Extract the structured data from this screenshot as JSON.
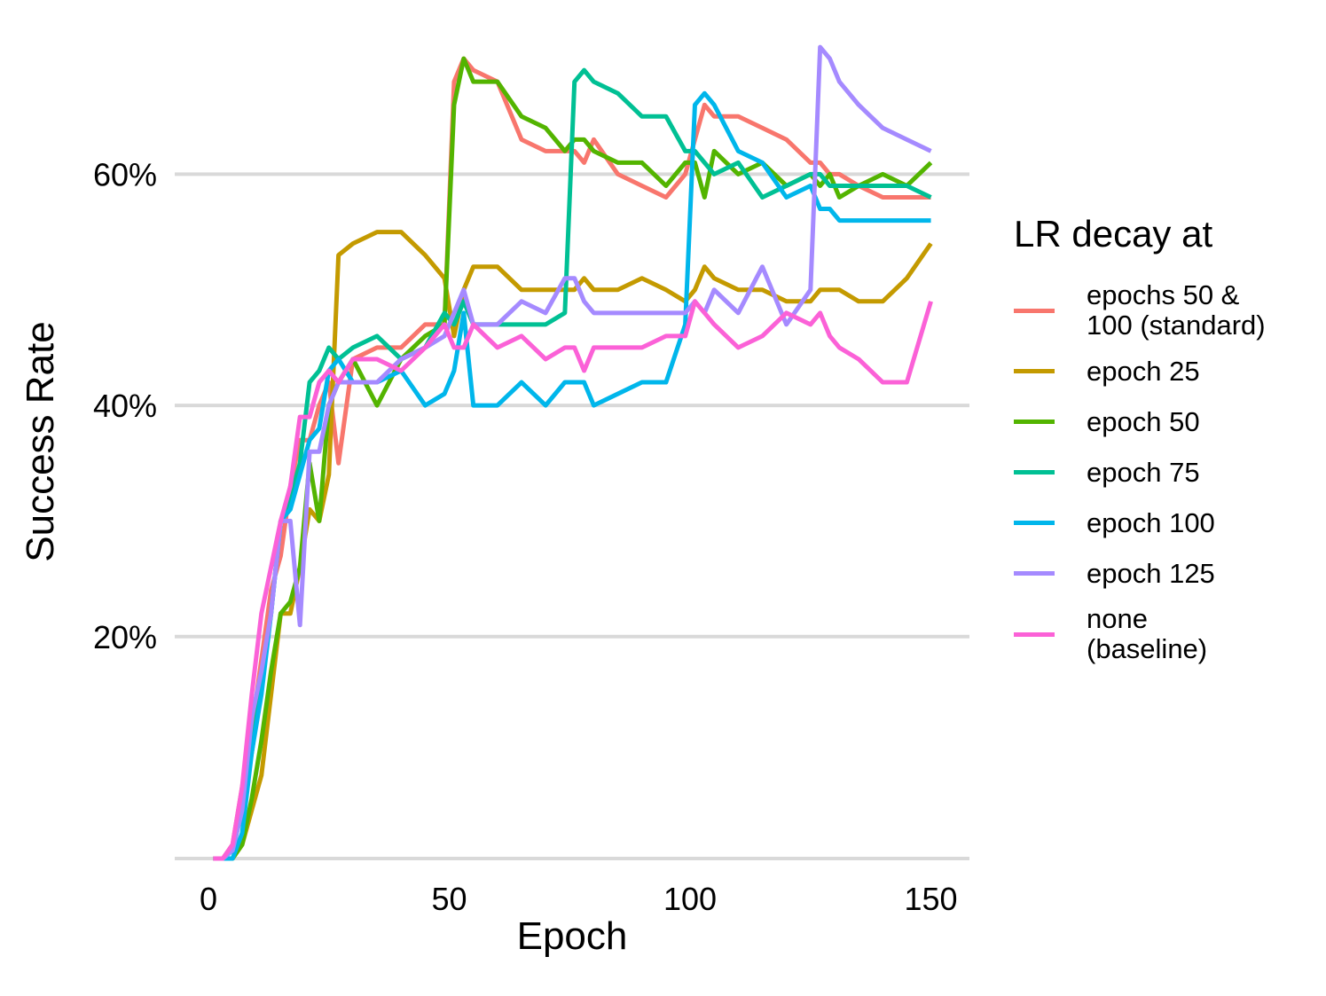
{
  "chart_data": {
    "type": "line",
    "x_label": "Epoch",
    "y_label": "Success Rate",
    "legend_title": "LR decay at",
    "xlim": [
      -7,
      158
    ],
    "xticks": [
      0,
      50,
      100,
      150
    ],
    "ylim": [
      0.8,
      73
    ],
    "yticks": [
      {
        "value": 20,
        "label": "20%"
      },
      {
        "value": 40,
        "label": "40%"
      },
      {
        "value": 60,
        "label": "60%"
      }
    ],
    "grid": true,
    "legend": "right",
    "x": [
      1,
      3,
      5,
      7,
      9,
      11,
      13,
      15,
      17,
      19,
      21,
      23,
      25,
      27,
      30,
      35,
      40,
      45,
      49,
      51,
      53,
      55,
      60,
      65,
      70,
      74,
      76,
      78,
      80,
      85,
      90,
      95,
      99,
      101,
      103,
      105,
      110,
      115,
      120,
      125,
      127,
      129,
      131,
      135,
      140,
      145,
      150
    ],
    "series": [
      {
        "name": "epochs 50 &\n100 (standard)",
        "color": "#f8766d",
        "values": [
          0.8,
          0.8,
          2,
          7,
          12,
          18,
          24,
          27,
          33,
          37,
          37,
          40,
          42,
          35,
          44,
          45,
          45,
          47,
          47,
          68,
          70,
          69,
          68,
          63,
          62,
          62,
          62,
          61,
          63,
          60,
          59,
          58,
          60,
          63,
          66,
          65,
          65,
          64,
          63,
          61,
          61,
          60,
          60,
          59,
          58,
          58,
          58
        ]
      },
      {
        "name": "epoch 25",
        "color": "#c49a00",
        "values": [
          0.8,
          0.8,
          0.8,
          2,
          5,
          8,
          15,
          22,
          22,
          26,
          31,
          30,
          34,
          53,
          54,
          55,
          55,
          53,
          51,
          46,
          50,
          52,
          52,
          50,
          50,
          50,
          50,
          51,
          50,
          50,
          51,
          50,
          49,
          50,
          52,
          51,
          50,
          50,
          49,
          49,
          50,
          50,
          50,
          49,
          49,
          51,
          54
        ]
      },
      {
        "name": "epoch 50",
        "color": "#53b400",
        "values": [
          0.8,
          0.8,
          0.8,
          2,
          6,
          11,
          17,
          22,
          23,
          26,
          35,
          30,
          40,
          42,
          44,
          40,
          44,
          46,
          47,
          66,
          70,
          68,
          68,
          65,
          64,
          62,
          63,
          63,
          62,
          61,
          61,
          59,
          61,
          61,
          58,
          62,
          60,
          61,
          59,
          60,
          59,
          60,
          58,
          59,
          60,
          59,
          61
        ]
      },
      {
        "name": "epoch 75",
        "color": "#00c094",
        "values": [
          0.8,
          0.8,
          1.5,
          5,
          10,
          16,
          22,
          30,
          32,
          35,
          42,
          43,
          45,
          44,
          45,
          46,
          44,
          45,
          48,
          47,
          49,
          47,
          47,
          47,
          47,
          48,
          68,
          69,
          68,
          67,
          65,
          65,
          62,
          62,
          61,
          60,
          61,
          58,
          59,
          60,
          60,
          59,
          59,
          59,
          59,
          59,
          58
        ]
      },
      {
        "name": "epoch 100",
        "color": "#00b6eb",
        "values": [
          0.8,
          0.8,
          0.8,
          3,
          10,
          15,
          22,
          30,
          31,
          34,
          37,
          38,
          43,
          44,
          42,
          42,
          43,
          40,
          41,
          43,
          48,
          40,
          40,
          42,
          40,
          42,
          42,
          42,
          40,
          41,
          42,
          42,
          47,
          66,
          67,
          66,
          62,
          61,
          58,
          59,
          57,
          57,
          56,
          56,
          56,
          56,
          56
        ]
      },
      {
        "name": "epoch 125",
        "color": "#a58aff",
        "values": [
          0.8,
          0.8,
          1.5,
          5,
          13,
          17,
          22,
          30,
          30,
          21,
          36,
          36,
          40,
          42,
          42,
          42,
          44,
          45,
          46,
          48,
          50,
          47,
          47,
          49,
          48,
          51,
          51,
          49,
          48,
          48,
          48,
          48,
          48,
          49,
          48,
          50,
          48,
          52,
          47,
          50,
          71,
          70,
          68,
          66,
          64,
          63,
          62
        ]
      },
      {
        "name": "none\n(baseline)",
        "color": "#fb61d7",
        "values": [
          0.8,
          0.8,
          2,
          7,
          15,
          22,
          26,
          30,
          33,
          39,
          39,
          42,
          43,
          42,
          44,
          44,
          43,
          45,
          47,
          45,
          45,
          47,
          45,
          46,
          44,
          45,
          45,
          43,
          45,
          45,
          45,
          46,
          46,
          49,
          48,
          47,
          45,
          46,
          48,
          47,
          48,
          46,
          45,
          44,
          42,
          42,
          49
        ]
      }
    ]
  }
}
